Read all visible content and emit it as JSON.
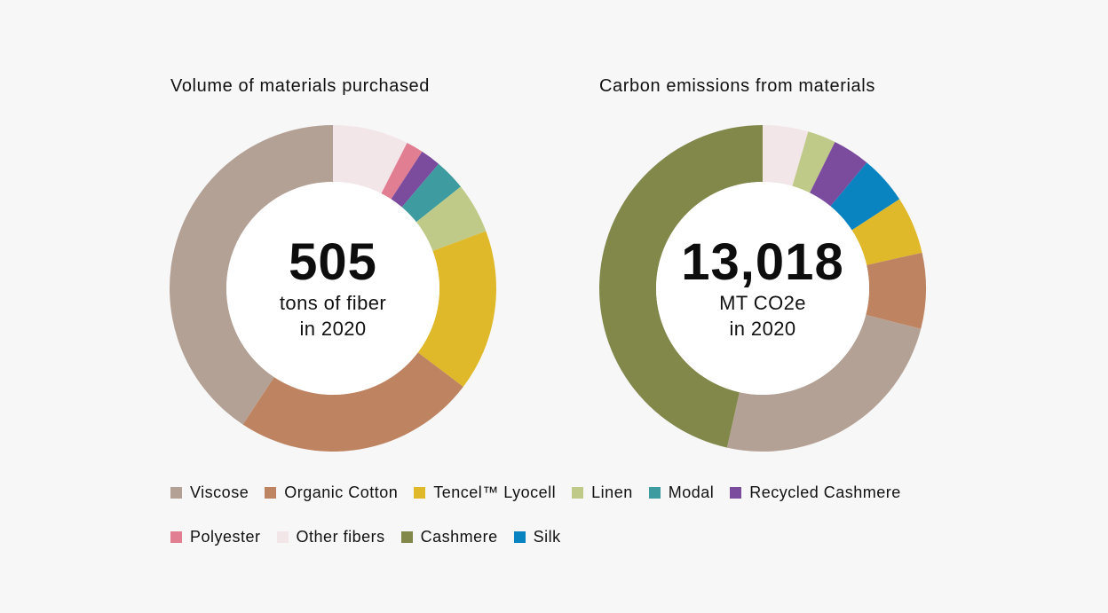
{
  "colors": {
    "Viscose": "#b4a195",
    "Organic Cotton": "#be8461",
    "Tencel™ Lyocell": "#e0b92a",
    "Linen": "#bfca88",
    "Modal": "#3e9b9f",
    "Recycled Cashmere": "#7b4b9e",
    "Polyester": "#e17e92",
    "Other fibers": "#f2e6e8",
    "Cashmere": "#82874a",
    "Silk": "#0a84c0"
  },
  "chart_data": [
    {
      "type": "pie",
      "title": "Volume of materials purchased",
      "center_value": "505",
      "center_line1": "tons of fiber",
      "center_line2": "in 2020",
      "start": "top",
      "direction": "clockwise",
      "slices": [
        {
          "label": "Other fibers",
          "value": 7.5
        },
        {
          "label": "Polyester",
          "value": 1.7
        },
        {
          "label": "Recycled Cashmere",
          "value": 2.0
        },
        {
          "label": "Modal",
          "value": 3.1
        },
        {
          "label": "Linen",
          "value": 5.0
        },
        {
          "label": "Tencel™ Lyocell",
          "value": 16.0
        },
        {
          "label": "Organic Cotton",
          "value": 24.0
        },
        {
          "label": "Viscose",
          "value": 40.7
        }
      ]
    },
    {
      "type": "pie",
      "title": "Carbon emissions from materials",
      "center_value": "13,018",
      "center_line1": "MT CO2e",
      "center_line2": "in 2020",
      "start": "top",
      "direction": "clockwise",
      "slices": [
        {
          "label": "Other fibers",
          "value": 4.5
        },
        {
          "label": "Linen",
          "value": 2.8
        },
        {
          "label": "Recycled Cashmere",
          "value": 3.7
        },
        {
          "label": "Silk",
          "value": 4.8
        },
        {
          "label": "Tencel™ Lyocell",
          "value": 5.7
        },
        {
          "label": "Organic Cotton",
          "value": 7.5
        },
        {
          "label": "Viscose",
          "value": 24.5
        },
        {
          "label": "Cashmere",
          "value": 46.5
        }
      ]
    }
  ],
  "legend": [
    "Viscose",
    "Organic Cotton",
    "Tencel™ Lyocell",
    "Linen",
    "Modal",
    "Recycled Cashmere",
    "Polyester",
    "Other fibers",
    "Cashmere",
    "Silk"
  ]
}
